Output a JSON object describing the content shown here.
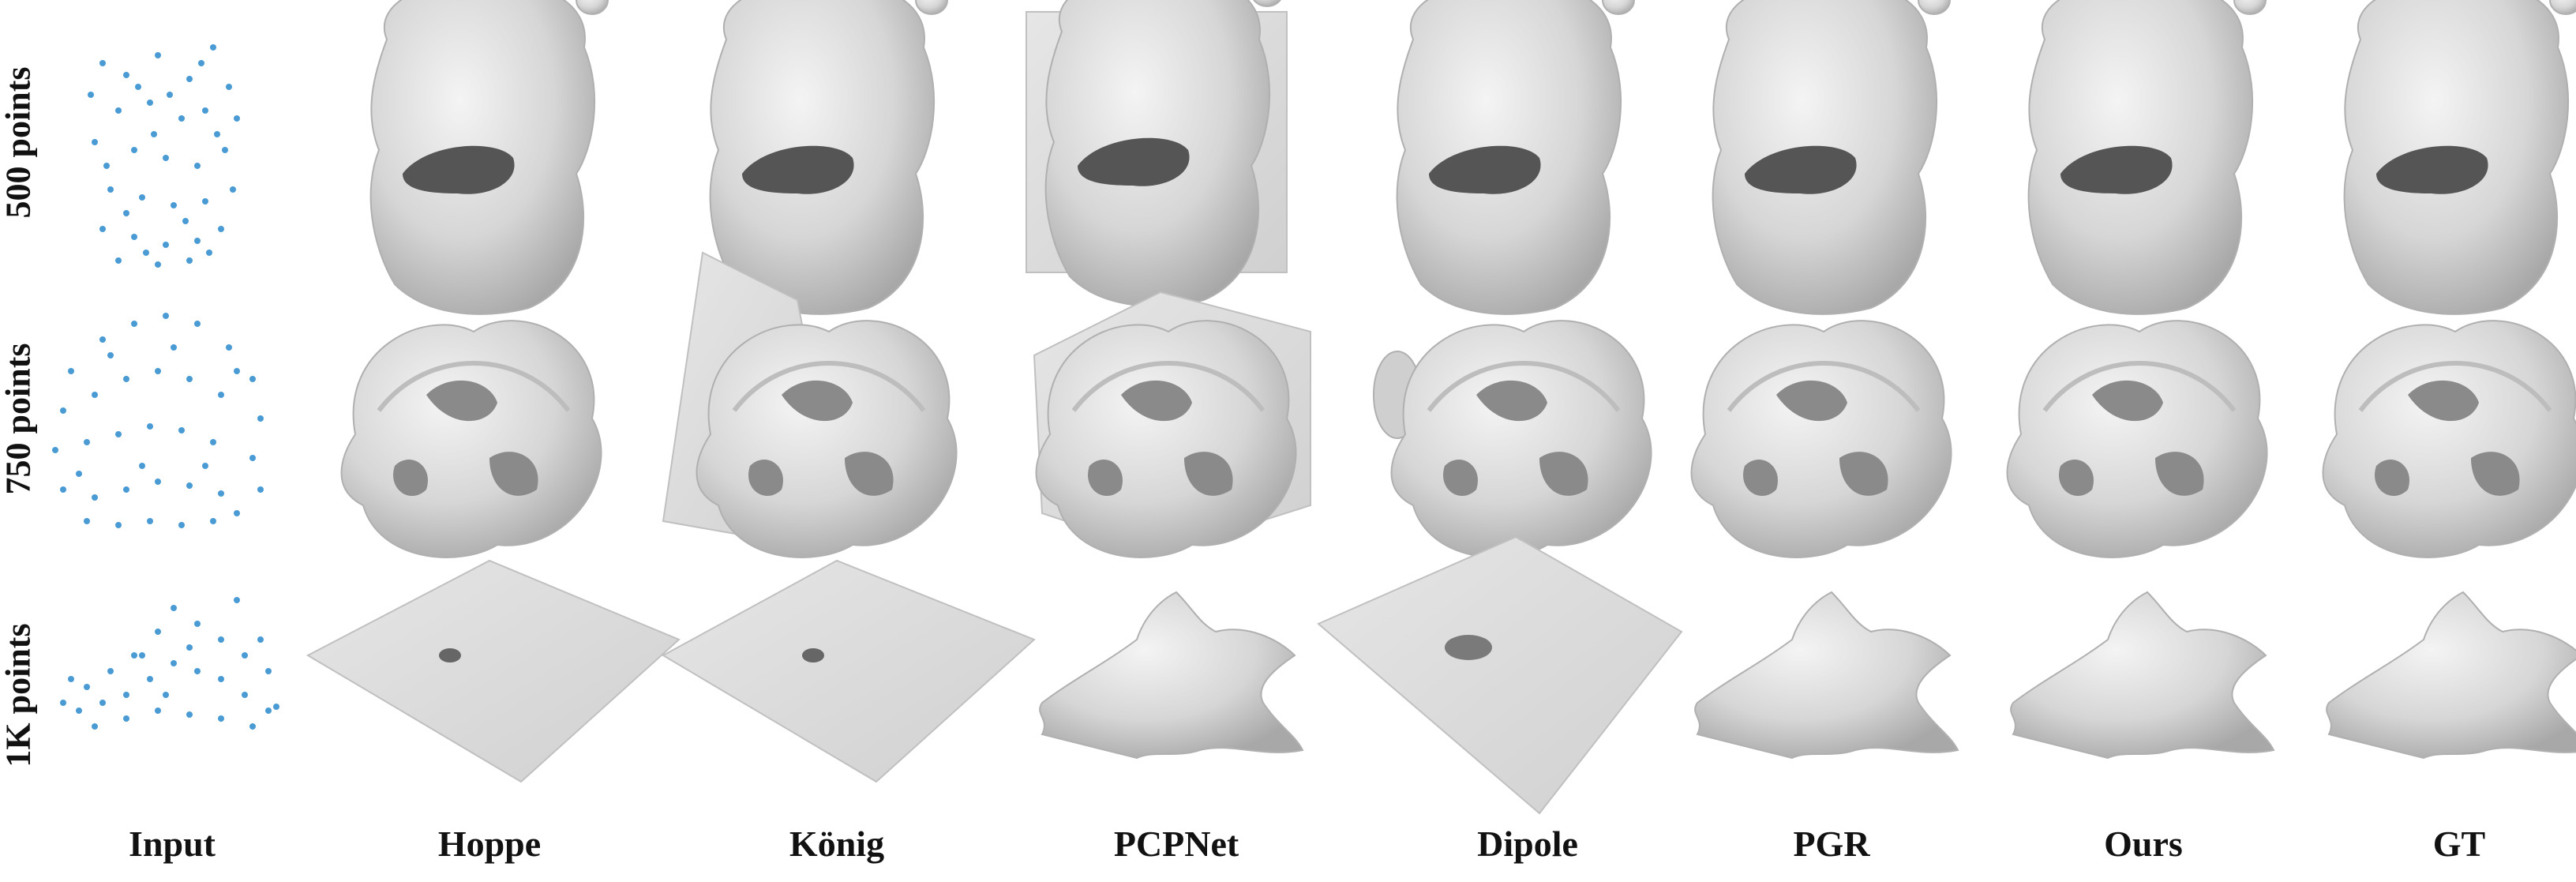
{
  "rows": [
    {
      "label": "500 points",
      "shape": "bunny-hole"
    },
    {
      "label": "750 points",
      "shape": "knot"
    },
    {
      "label": "1K points",
      "shape": "flat-star"
    }
  ],
  "columns": [
    {
      "label": "Input"
    },
    {
      "label": "Hoppe"
    },
    {
      "label": "König"
    },
    {
      "label": "PCPNet"
    },
    {
      "label": "Dipole"
    },
    {
      "label": "PGR"
    },
    {
      "label": "Ours"
    },
    {
      "label": "GT"
    }
  ],
  "colors": {
    "points": "#4a9bd4",
    "surface": "#d9d9d9",
    "shade": "#9e9e9e",
    "text": "#111111"
  }
}
